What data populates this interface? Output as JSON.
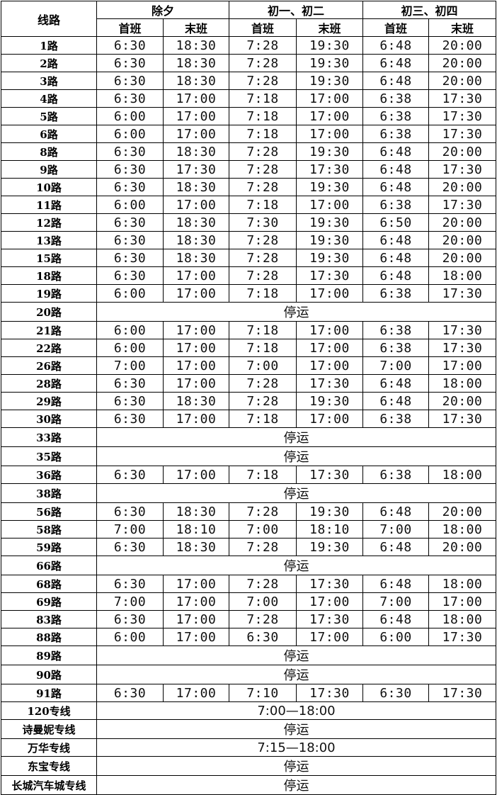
{
  "header": {
    "route_label": "线路",
    "periods": [
      "除夕",
      "初一、初二",
      "初三、初四"
    ],
    "first_label": "首班",
    "last_label": "末班"
  },
  "rows": [
    {
      "route": "1路",
      "times": [
        "6:30",
        "18:30",
        "7:28",
        "19:30",
        "6:48",
        "20:00"
      ]
    },
    {
      "route": "2路",
      "times": [
        "6:30",
        "18:30",
        "7:28",
        "19:30",
        "6:48",
        "20:00"
      ]
    },
    {
      "route": "3路",
      "times": [
        "6:30",
        "18:30",
        "7:28",
        "19:30",
        "6:48",
        "20:00"
      ]
    },
    {
      "route": "4路",
      "times": [
        "6:30",
        "17:00",
        "7:18",
        "17:00",
        "6:38",
        "17:30"
      ]
    },
    {
      "route": "5路",
      "times": [
        "6:00",
        "17:00",
        "7:18",
        "17:00",
        "6:38",
        "17:30"
      ]
    },
    {
      "route": "6路",
      "times": [
        "6:00",
        "17:00",
        "7:18",
        "17:00",
        "6:38",
        "17:30"
      ]
    },
    {
      "route": "8路",
      "times": [
        "6:30",
        "18:30",
        "7:28",
        "19:30",
        "6:48",
        "20:00"
      ]
    },
    {
      "route": "9路",
      "times": [
        "6:30",
        "17:30",
        "7:28",
        "17:30",
        "6:48",
        "17:30"
      ]
    },
    {
      "route": "10路",
      "times": [
        "6:30",
        "18:30",
        "7:28",
        "19:30",
        "6:48",
        "20:00"
      ]
    },
    {
      "route": "11路",
      "times": [
        "6:00",
        "17:00",
        "7:18",
        "17:00",
        "6:38",
        "17:30"
      ]
    },
    {
      "route": "12路",
      "times": [
        "6:30",
        "18:30",
        "7:30",
        "19:30",
        "6:50",
        "20:00"
      ]
    },
    {
      "route": "13路",
      "times": [
        "6:30",
        "18:30",
        "7:28",
        "19:30",
        "6:48",
        "20:00"
      ]
    },
    {
      "route": "15路",
      "times": [
        "6:30",
        "18:30",
        "7:28",
        "19:30",
        "6:48",
        "20:00"
      ]
    },
    {
      "route": "18路",
      "times": [
        "6:30",
        "17:00",
        "7:28",
        "17:30",
        "6:48",
        "18:00"
      ]
    },
    {
      "route": "19路",
      "times": [
        "6:00",
        "17:00",
        "7:18",
        "17:00",
        "6:38",
        "17:30"
      ]
    },
    {
      "route": "20路",
      "note": "停运"
    },
    {
      "route": "21路",
      "times": [
        "6:00",
        "17:00",
        "7:18",
        "17:00",
        "6:38",
        "17:30"
      ]
    },
    {
      "route": "22路",
      "times": [
        "6:00",
        "17:00",
        "7:18",
        "17:00",
        "6:38",
        "17:30"
      ]
    },
    {
      "route": "26路",
      "times": [
        "7:00",
        "17:00",
        "7:00",
        "17:00",
        "7:00",
        "17:00"
      ]
    },
    {
      "route": "28路",
      "times": [
        "6:30",
        "17:00",
        "7:28",
        "17:30",
        "6:48",
        "18:00"
      ]
    },
    {
      "route": "29路",
      "times": [
        "6:30",
        "18:30",
        "7:28",
        "19:30",
        "6:48",
        "20:00"
      ]
    },
    {
      "route": "30路",
      "times": [
        "6:30",
        "17:00",
        "7:18",
        "17:00",
        "6:38",
        "17:30"
      ]
    },
    {
      "route": "33路",
      "note": "停运"
    },
    {
      "route": "35路",
      "note": "停运"
    },
    {
      "route": "36路",
      "times": [
        "6:30",
        "17:00",
        "7:18",
        "17:30",
        "6:38",
        "18:00"
      ]
    },
    {
      "route": "38路",
      "note": "停运"
    },
    {
      "route": "56路",
      "times": [
        "6:30",
        "18:30",
        "7:28",
        "19:30",
        "6:48",
        "20:00"
      ]
    },
    {
      "route": "58路",
      "times": [
        "7:00",
        "18:10",
        "7:00",
        "18:10",
        "7:00",
        "18:00"
      ]
    },
    {
      "route": "59路",
      "times": [
        "6:30",
        "18:30",
        "7:28",
        "19:30",
        "6:48",
        "20:00"
      ]
    },
    {
      "route": "66路",
      "note": "停运"
    },
    {
      "route": "68路",
      "times": [
        "6:30",
        "17:00",
        "7:28",
        "17:30",
        "6:48",
        "18:00"
      ]
    },
    {
      "route": "69路",
      "times": [
        "7:00",
        "17:00",
        "7:00",
        "17:00",
        "7:00",
        "17:00"
      ]
    },
    {
      "route": "83路",
      "times": [
        "6:30",
        "17:00",
        "7:28",
        "17:30",
        "6:48",
        "18:00"
      ]
    },
    {
      "route": "88路",
      "times": [
        "6:00",
        "17:00",
        "6:30",
        "17:00",
        "6:00",
        "17:30"
      ]
    },
    {
      "route": "89路",
      "note": "停运"
    },
    {
      "route": "90路",
      "note": "停运"
    },
    {
      "route": "91路",
      "times": [
        "6:30",
        "17:00",
        "7:10",
        "17:30",
        "6:30",
        "17:30"
      ]
    },
    {
      "route": "120专线",
      "note": "7:00—18:00"
    },
    {
      "route": "诗曼妮专线",
      "note": "停运"
    },
    {
      "route": "万华专线",
      "note": "7:15—18:00"
    },
    {
      "route": "东宝专线",
      "note": "停运"
    },
    {
      "route": "长城汽车城专线",
      "note": "停运"
    }
  ]
}
